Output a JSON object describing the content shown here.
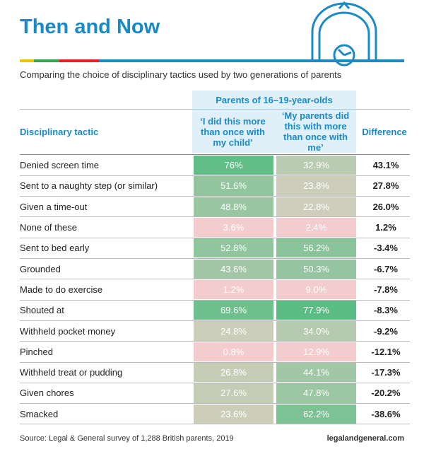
{
  "title": "Then and Now",
  "subtitle": "Comparing the choice of disciplinary tactics used by two generations of parents",
  "table": {
    "group_header": "Parents of 16–19-year-olds",
    "columns": [
      "Disciplinary tactic",
      "‘I did this more than once with my child’",
      "‘My parents did this with more than once with me’",
      "Difference"
    ],
    "rows": [
      [
        "Denied screen time",
        "76%",
        "32.9%",
        "43.1%"
      ],
      [
        "Sent to a naughty step (or similar)",
        "51.6%",
        "23.8%",
        "27.8%"
      ],
      [
        "Given a time-out",
        "48.8%",
        "22.8%",
        "26.0%"
      ],
      [
        "None of these",
        "3.6%",
        "2.4%",
        "1.2%"
      ],
      [
        "Sent to bed early",
        "52.8%",
        "56.2%",
        "-3.4%"
      ],
      [
        "Grounded",
        "43.6%",
        "50.3%",
        "-6.7%"
      ],
      [
        "Made to do exercise",
        "1.2%",
        "9.0%",
        "-7.8%"
      ],
      [
        "Shouted at",
        "69.6%",
        "77.9%",
        "-8.3%"
      ],
      [
        "Withheld pocket money",
        "24.8%",
        "34.0%",
        "-9.2%"
      ],
      [
        "Pinched",
        "0.8%",
        "12.9%",
        "-12.1%"
      ],
      [
        "Withheld treat or pudding",
        "26.8%",
        "44.1%",
        "-17.3%"
      ],
      [
        "Given chores",
        "27.6%",
        "47.8%",
        "-20.2%"
      ],
      [
        "Smacked",
        "23.6%",
        "62.2%",
        "-38.6%"
      ]
    ]
  },
  "source": "Source: Legal & General survey of 1,288 British parents, 2019",
  "website": "legalandgeneral.com"
}
